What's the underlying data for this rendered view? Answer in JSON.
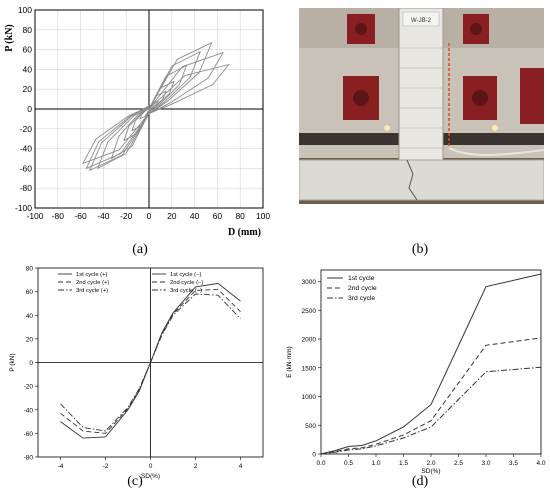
{
  "panel_labels": {
    "a": "(a)",
    "b": "(b)",
    "c": "(c)",
    "d": "(d)"
  },
  "photo": {
    "specimen_tag": "W-JB-2",
    "colors": {
      "wall_bg": "#c8c0b6",
      "plates": "#8a1f22",
      "floor": "#7b6a55",
      "column": "#e8e6e2",
      "base_block": "#d9d7d2"
    }
  },
  "chart_data": [
    {
      "id": "a",
      "type": "line",
      "subtype": "hysteresis",
      "xlabel": "D (mm)",
      "ylabel": "P (kN)",
      "xlim": [
        -100,
        100
      ],
      "ylim": [
        -100,
        100
      ],
      "xticks": [
        -100,
        -80,
        -60,
        -40,
        -20,
        0,
        20,
        40,
        60,
        80,
        100
      ],
      "yticks": [
        -100,
        -80,
        -60,
        -40,
        -20,
        0,
        20,
        40,
        60,
        80,
        100
      ],
      "grid": true,
      "color": "#8c8c8c",
      "loops": [
        {
          "amp_pos": 8,
          "amp_neg": 8,
          "peak_pos": 8,
          "peak_neg": 10
        },
        {
          "amp_pos": 15,
          "amp_neg": 15,
          "peak_pos": 18,
          "peak_neg": 22
        },
        {
          "amp_pos": 22,
          "amp_neg": 22,
          "peak_pos": 28,
          "peak_neg": 32
        },
        {
          "amp_pos": 33,
          "amp_neg": 33,
          "peak_pos": 44,
          "peak_neg": 50
        },
        {
          "amp_pos": 45,
          "amp_neg": 45,
          "peak_pos": 58,
          "peak_neg": 60
        },
        {
          "amp_pos": 55,
          "amp_neg": 52,
          "peak_pos": 67,
          "peak_neg": 62
        },
        {
          "amp_pos": 65,
          "amp_neg": 55,
          "peak_pos": 57,
          "peak_neg": 60
        },
        {
          "amp_pos": 70,
          "amp_neg": 58,
          "peak_pos": 45,
          "peak_neg": 55
        }
      ]
    },
    {
      "id": "c",
      "type": "line",
      "xlabel": "SD(%)",
      "ylabel": "P (kN)",
      "xlim": [
        -5,
        5
      ],
      "ylim": [
        -80,
        80
      ],
      "xticks": [
        -4,
        -2,
        0,
        2,
        4
      ],
      "yticks": [
        -80,
        -60,
        -40,
        -20,
        0,
        20,
        40,
        60,
        80
      ],
      "legend": "top, two columns",
      "x": [
        -4,
        -3,
        -2,
        -1,
        -0.5,
        0,
        0.5,
        1,
        2,
        3,
        4
      ],
      "series": [
        {
          "name": "1st cycle (+)",
          "dash": "solid",
          "x": [
            0,
            0.5,
            1,
            2,
            3,
            4
          ],
          "values": [
            0,
            25,
            42,
            64,
            67,
            52
          ]
        },
        {
          "name": "1st cycle (−)",
          "dash": "solid",
          "x": [
            -4,
            -3,
            -2,
            -1,
            -0.5,
            0
          ],
          "values": [
            -50,
            -64,
            -63,
            -40,
            -24,
            0
          ]
        },
        {
          "name": "2nd cycle (+)",
          "dash": "dashed",
          "x": [
            0,
            0.5,
            1,
            2,
            3,
            4
          ],
          "values": [
            0,
            24,
            41,
            61,
            62,
            43
          ]
        },
        {
          "name": "2nd cycle (−)",
          "dash": "dashed",
          "x": [
            -4,
            -3,
            -2,
            -1,
            -0.5,
            0
          ],
          "values": [
            -43,
            -58,
            -60,
            -39,
            -23,
            0
          ]
        },
        {
          "name": "3rd cycle (+)",
          "dash": "dashdot",
          "x": [
            0,
            0.5,
            1,
            2,
            3,
            4
          ],
          "values": [
            0,
            23,
            40,
            58,
            57,
            37
          ]
        },
        {
          "name": "3rd cycle (−)",
          "dash": "dashdot",
          "x": [
            -4,
            -3,
            -2,
            -1,
            -0.5,
            0
          ],
          "values": [
            -35,
            -55,
            -58,
            -38,
            -22,
            0
          ]
        }
      ]
    },
    {
      "id": "d",
      "type": "line",
      "xlabel": "SD(%)",
      "ylabel": "E (kN·mm)",
      "xlim": [
        0,
        4
      ],
      "ylim": [
        0,
        3200
      ],
      "xticks": [
        0.0,
        0.5,
        1.0,
        1.5,
        2.0,
        2.5,
        3.0,
        3.5,
        4.0
      ],
      "xtick_labels": [
        "0.0",
        "0.5",
        "1.0",
        "1.5",
        "2.0",
        "2.5",
        "3.0",
        "3.5",
        "4.0"
      ],
      "yticks": [
        0,
        500,
        1000,
        1500,
        2000,
        2500,
        3000
      ],
      "legend": "top-left",
      "x": [
        0,
        0.25,
        0.5,
        0.75,
        1.0,
        1.5,
        2.0,
        3.0,
        4.0
      ],
      "series": [
        {
          "name": "1st cycle",
          "dash": "solid",
          "values": [
            0,
            60,
            130,
            150,
            230,
            470,
            860,
            2910,
            3130
          ]
        },
        {
          "name": "2nd cycle",
          "dash": "dashed",
          "values": [
            0,
            40,
            90,
            110,
            170,
            330,
            580,
            1890,
            2020
          ]
        },
        {
          "name": "3rd cycle",
          "dash": "dashdot",
          "values": [
            0,
            30,
            70,
            90,
            140,
            280,
            470,
            1430,
            1510
          ]
        }
      ]
    }
  ]
}
